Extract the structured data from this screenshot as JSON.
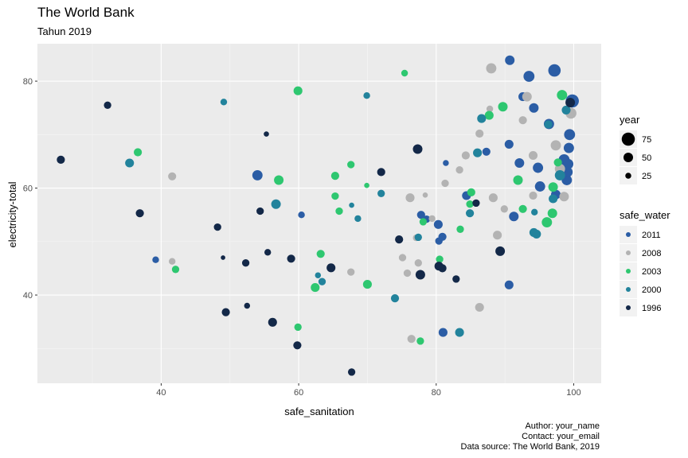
{
  "colors": {
    "panel": "#ebebeb",
    "grid_major": "#ffffff",
    "grid_minor": "#f5f5f5",
    "axis_text": "#4d4d4d"
  },
  "chart_data": {
    "type": "scatter",
    "title": "The World Bank",
    "subtitle": "Tahun 2019",
    "xlabel": "safe_sanitation",
    "ylabel": "electricity-total",
    "xlim": [
      22,
      104
    ],
    "ylim": [
      23.5,
      87
    ],
    "x_ticks": [
      40,
      60,
      80,
      100
    ],
    "y_ticks": [
      40,
      60,
      80
    ],
    "grid": true,
    "legend_position": "right",
    "size_legend": {
      "title": "year",
      "entries": [
        {
          "label": "75",
          "value": 75
        },
        {
          "label": "50",
          "value": 50
        },
        {
          "label": "25",
          "value": 25
        }
      ]
    },
    "color_legend": {
      "title": "safe_water",
      "entries": [
        {
          "label": "2011",
          "color": "#2b5da5"
        },
        {
          "label": "2008",
          "color": "#b3b3b3"
        },
        {
          "label": "2003",
          "color": "#2ec770"
        },
        {
          "label": "2000",
          "color": "#22839c"
        },
        {
          "label": "1996",
          "color": "#132848"
        }
      ]
    },
    "caption": [
      "Author: your_name",
      "Contact: your_email",
      "Data source: The World Bank, 2019"
    ],
    "series": [
      {
        "name": "2011",
        "color": "#2b5da5",
        "points": [
          {
            "x": 39.2,
            "y": 46.6,
            "s": 30
          },
          {
            "x": 54.0,
            "y": 62.4,
            "s": 55
          },
          {
            "x": 60.4,
            "y": 55.0,
            "s": 30
          },
          {
            "x": 80.3,
            "y": 53.2,
            "s": 45
          },
          {
            "x": 80.4,
            "y": 50.1,
            "s": 35
          },
          {
            "x": 80.9,
            "y": 50.9,
            "s": 40
          },
          {
            "x": 81.4,
            "y": 64.7,
            "s": 25
          },
          {
            "x": 84.4,
            "y": 58.6,
            "s": 45
          },
          {
            "x": 87.3,
            "y": 66.8,
            "s": 40
          },
          {
            "x": 78.6,
            "y": 54.2,
            "s": 35
          },
          {
            "x": 90.7,
            "y": 83.9,
            "s": 50
          },
          {
            "x": 90.6,
            "y": 68.2,
            "s": 45
          },
          {
            "x": 93.5,
            "y": 80.9,
            "s": 60
          },
          {
            "x": 92.1,
            "y": 64.7,
            "s": 50
          },
          {
            "x": 92.6,
            "y": 77.1,
            "s": 45
          },
          {
            "x": 94.2,
            "y": 75.0,
            "s": 50
          },
          {
            "x": 96.4,
            "y": 72.0,
            "s": 55
          },
          {
            "x": 97.2,
            "y": 82.0,
            "s": 70
          },
          {
            "x": 97.4,
            "y": 58.8,
            "s": 50
          },
          {
            "x": 98.1,
            "y": 64.4,
            "s": 50
          },
          {
            "x": 98.6,
            "y": 65.3,
            "s": 60
          },
          {
            "x": 99.0,
            "y": 61.5,
            "s": 55
          },
          {
            "x": 99.1,
            "y": 63.0,
            "s": 55
          },
          {
            "x": 99.2,
            "y": 64.5,
            "s": 55
          },
          {
            "x": 99.3,
            "y": 67.5,
            "s": 55
          },
          {
            "x": 99.4,
            "y": 70.0,
            "s": 60
          },
          {
            "x": 99.8,
            "y": 76.3,
            "s": 75
          },
          {
            "x": 94.8,
            "y": 63.8,
            "s": 55
          },
          {
            "x": 95.1,
            "y": 60.3,
            "s": 55
          },
          {
            "x": 91.3,
            "y": 54.7,
            "s": 50
          },
          {
            "x": 90.6,
            "y": 41.9,
            "s": 45
          },
          {
            "x": 81.0,
            "y": 33.0,
            "s": 45
          },
          {
            "x": 77.8,
            "y": 55.0,
            "s": 40
          }
        ]
      },
      {
        "name": "2008",
        "color": "#b3b3b3",
        "points": [
          {
            "x": 41.6,
            "y": 62.2,
            "s": 40
          },
          {
            "x": 41.6,
            "y": 46.3,
            "s": 30
          },
          {
            "x": 67.6,
            "y": 44.3,
            "s": 35
          },
          {
            "x": 75.1,
            "y": 47.0,
            "s": 35
          },
          {
            "x": 75.8,
            "y": 44.1,
            "s": 35
          },
          {
            "x": 76.2,
            "y": 58.2,
            "s": 45
          },
          {
            "x": 77.4,
            "y": 46.0,
            "s": 35
          },
          {
            "x": 77.1,
            "y": 50.7,
            "s": 30
          },
          {
            "x": 78.4,
            "y": 58.7,
            "s": 20
          },
          {
            "x": 79.4,
            "y": 54.3,
            "s": 30
          },
          {
            "x": 81.3,
            "y": 60.9,
            "s": 35
          },
          {
            "x": 83.4,
            "y": 63.4,
            "s": 35
          },
          {
            "x": 84.3,
            "y": 66.1,
            "s": 40
          },
          {
            "x": 86.3,
            "y": 70.2,
            "s": 40
          },
          {
            "x": 87.8,
            "y": 74.8,
            "s": 30
          },
          {
            "x": 88.0,
            "y": 82.4,
            "s": 55
          },
          {
            "x": 88.3,
            "y": 58.2,
            "s": 45
          },
          {
            "x": 89.9,
            "y": 56.1,
            "s": 35
          },
          {
            "x": 92.6,
            "y": 72.7,
            "s": 40
          },
          {
            "x": 93.2,
            "y": 77.1,
            "s": 50
          },
          {
            "x": 94.1,
            "y": 58.6,
            "s": 40
          },
          {
            "x": 94.1,
            "y": 66.1,
            "s": 45
          },
          {
            "x": 97.4,
            "y": 68.0,
            "s": 55
          },
          {
            "x": 98.0,
            "y": 63.6,
            "s": 55
          },
          {
            "x": 98.6,
            "y": 58.4,
            "s": 50
          },
          {
            "x": 99.6,
            "y": 74.0,
            "s": 60
          },
          {
            "x": 86.3,
            "y": 37.7,
            "s": 45
          },
          {
            "x": 76.4,
            "y": 31.8,
            "s": 40
          },
          {
            "x": 88.9,
            "y": 51.2,
            "s": 45
          }
        ]
      },
      {
        "name": "2003",
        "color": "#2ec770",
        "points": [
          {
            "x": 42.1,
            "y": 44.8,
            "s": 35
          },
          {
            "x": 36.6,
            "y": 66.7,
            "s": 40
          },
          {
            "x": 59.9,
            "y": 78.2,
            "s": 45
          },
          {
            "x": 57.1,
            "y": 61.5,
            "s": 50
          },
          {
            "x": 65.3,
            "y": 62.3,
            "s": 40
          },
          {
            "x": 65.3,
            "y": 58.5,
            "s": 35
          },
          {
            "x": 65.9,
            "y": 55.7,
            "s": 35
          },
          {
            "x": 67.6,
            "y": 64.4,
            "s": 35
          },
          {
            "x": 69.9,
            "y": 60.5,
            "s": 20
          },
          {
            "x": 75.4,
            "y": 81.5,
            "s": 30
          },
          {
            "x": 63.2,
            "y": 47.7,
            "s": 40
          },
          {
            "x": 62.4,
            "y": 41.4,
            "s": 45
          },
          {
            "x": 70.0,
            "y": 42.0,
            "s": 45
          },
          {
            "x": 77.7,
            "y": 31.4,
            "s": 35
          },
          {
            "x": 80.5,
            "y": 46.7,
            "s": 35
          },
          {
            "x": 78.1,
            "y": 53.7,
            "s": 35
          },
          {
            "x": 83.5,
            "y": 52.3,
            "s": 35
          },
          {
            "x": 84.9,
            "y": 57.0,
            "s": 35
          },
          {
            "x": 85.1,
            "y": 59.2,
            "s": 40
          },
          {
            "x": 87.7,
            "y": 73.6,
            "s": 45
          },
          {
            "x": 89.7,
            "y": 75.2,
            "s": 50
          },
          {
            "x": 91.9,
            "y": 61.5,
            "s": 50
          },
          {
            "x": 92.6,
            "y": 56.1,
            "s": 40
          },
          {
            "x": 96.1,
            "y": 53.6,
            "s": 55
          },
          {
            "x": 96.9,
            "y": 55.3,
            "s": 50
          },
          {
            "x": 97.0,
            "y": 60.2,
            "s": 50
          },
          {
            "x": 97.7,
            "y": 64.8,
            "s": 40
          },
          {
            "x": 98.3,
            "y": 77.4,
            "s": 55
          },
          {
            "x": 59.9,
            "y": 34.0,
            "s": 35
          }
        ]
      },
      {
        "name": "2000",
        "color": "#22839c",
        "points": [
          {
            "x": 35.4,
            "y": 64.7,
            "s": 45
          },
          {
            "x": 49.1,
            "y": 76.1,
            "s": 30
          },
          {
            "x": 56.7,
            "y": 57.0,
            "s": 50
          },
          {
            "x": 62.8,
            "y": 43.7,
            "s": 25
          },
          {
            "x": 63.4,
            "y": 42.5,
            "s": 35
          },
          {
            "x": 67.7,
            "y": 56.8,
            "s": 20
          },
          {
            "x": 68.6,
            "y": 54.3,
            "s": 30
          },
          {
            "x": 69.9,
            "y": 77.3,
            "s": 30
          },
          {
            "x": 72.0,
            "y": 59.0,
            "s": 35
          },
          {
            "x": 74.0,
            "y": 39.4,
            "s": 40
          },
          {
            "x": 77.4,
            "y": 50.8,
            "s": 35
          },
          {
            "x": 83.4,
            "y": 33.0,
            "s": 45
          },
          {
            "x": 84.9,
            "y": 55.3,
            "s": 40
          },
          {
            "x": 86.0,
            "y": 66.6,
            "s": 45
          },
          {
            "x": 86.6,
            "y": 73.0,
            "s": 45
          },
          {
            "x": 94.2,
            "y": 51.7,
            "s": 45
          },
          {
            "x": 94.6,
            "y": 51.4,
            "s": 45
          },
          {
            "x": 96.3,
            "y": 71.9,
            "s": 40
          },
          {
            "x": 97.0,
            "y": 58.0,
            "s": 45
          },
          {
            "x": 98.0,
            "y": 62.4,
            "s": 55
          },
          {
            "x": 98.9,
            "y": 74.6,
            "s": 45
          },
          {
            "x": 94.3,
            "y": 55.5,
            "s": 30
          }
        ]
      },
      {
        "name": "1996",
        "color": "#132848",
        "points": [
          {
            "x": 25.4,
            "y": 65.3,
            "s": 40
          },
          {
            "x": 32.2,
            "y": 75.5,
            "s": 35
          },
          {
            "x": 36.9,
            "y": 55.3,
            "s": 40
          },
          {
            "x": 48.2,
            "y": 52.7,
            "s": 35
          },
          {
            "x": 49.4,
            "y": 36.8,
            "s": 40
          },
          {
            "x": 52.3,
            "y": 46.0,
            "s": 35
          },
          {
            "x": 52.5,
            "y": 38.0,
            "s": 25
          },
          {
            "x": 54.4,
            "y": 55.7,
            "s": 35
          },
          {
            "x": 55.3,
            "y": 70.1,
            "s": 20
          },
          {
            "x": 55.5,
            "y": 48.0,
            "s": 30
          },
          {
            "x": 56.2,
            "y": 34.9,
            "s": 45
          },
          {
            "x": 58.9,
            "y": 46.8,
            "s": 40
          },
          {
            "x": 59.8,
            "y": 30.6,
            "s": 40
          },
          {
            "x": 64.7,
            "y": 45.1,
            "s": 45
          },
          {
            "x": 67.7,
            "y": 25.6,
            "s": 35
          },
          {
            "x": 72.0,
            "y": 63.0,
            "s": 40
          },
          {
            "x": 74.6,
            "y": 50.4,
            "s": 40
          },
          {
            "x": 77.3,
            "y": 67.3,
            "s": 50
          },
          {
            "x": 77.7,
            "y": 43.8,
            "s": 50
          },
          {
            "x": 80.4,
            "y": 45.4,
            "s": 45
          },
          {
            "x": 80.9,
            "y": 45.0,
            "s": 40
          },
          {
            "x": 82.9,
            "y": 43.0,
            "s": 35
          },
          {
            "x": 85.8,
            "y": 57.2,
            "s": 35
          },
          {
            "x": 89.3,
            "y": 48.2,
            "s": 50
          },
          {
            "x": 99.5,
            "y": 76.0,
            "s": 50
          },
          {
            "x": 49.0,
            "y": 47.0,
            "s": 15
          }
        ]
      }
    ]
  }
}
